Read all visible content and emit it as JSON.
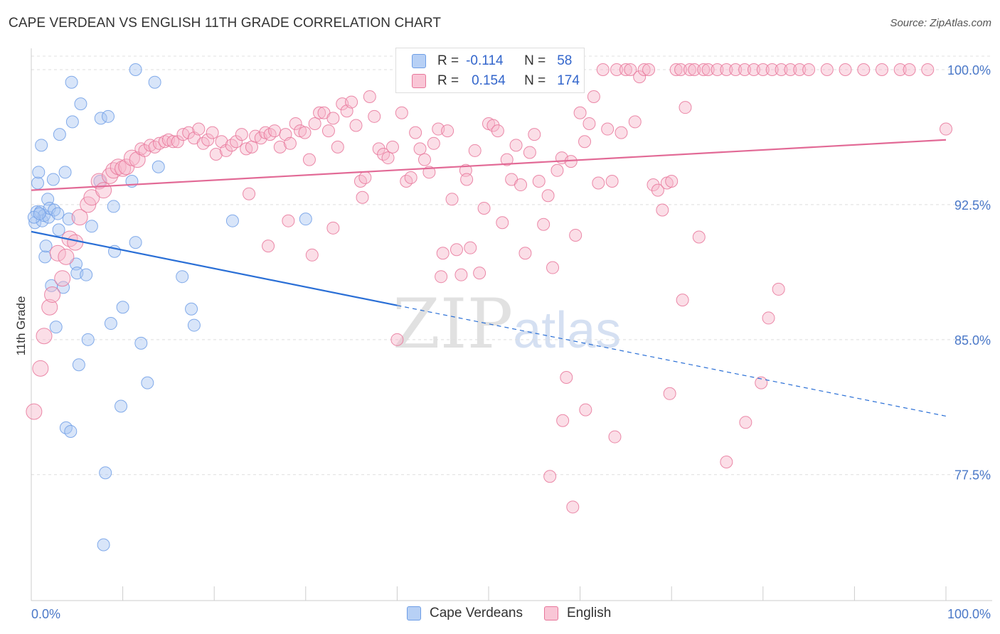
{
  "header": {
    "title": "CAPE VERDEAN VS ENGLISH 11TH GRADE CORRELATION CHART",
    "source": "Source: ZipAtlas.com"
  },
  "legend": {
    "rows": [
      {
        "r_label": "R =",
        "r_value": "-0.114",
        "n_label": "N =",
        "n_value": "58",
        "color": "#a9c6f2"
      },
      {
        "r_label": "R =",
        "r_value": "0.154",
        "n_label": "N =",
        "n_value": "174",
        "color": "#f6b6ca"
      }
    ]
  },
  "bottom_legend": {
    "items": [
      {
        "label": "Cape Verdeans",
        "color": "#a9c6f2"
      },
      {
        "label": "English",
        "color": "#f6b6ca"
      }
    ]
  },
  "watermark": {
    "zip": "ZIP",
    "atlas": "atlas"
  },
  "chart_data": {
    "type": "scatter",
    "title": "CAPE VERDEAN VS ENGLISH 11TH GRADE CORRELATION CHART",
    "xlabel": "",
    "ylabel": "11th Grade",
    "xlim": [
      0,
      100
    ],
    "ylim": [
      70.5,
      101.5
    ],
    "x_tick_labels": [
      "0.0%",
      "100.0%"
    ],
    "y_ticks": [
      77.5,
      85.0,
      92.5,
      100.0
    ],
    "y_tick_labels": [
      "77.5%",
      "85.0%",
      "92.5%",
      "100.0%"
    ],
    "series": [
      {
        "name": "Cape Verdeans",
        "color": "#6e9ee6",
        "fill": "#a9c6f2",
        "trend": {
          "x0": 0,
          "y0": 91.0,
          "x1": 40,
          "y1": 86.9,
          "dash_x1": 100,
          "dash_y1": 80.75
        },
        "points": [
          [
            0.4,
            91.5
          ],
          [
            0.6,
            92.1
          ],
          [
            0.7,
            93.7
          ],
          [
            0.8,
            94.3
          ],
          [
            1.0,
            92.1
          ],
          [
            1.1,
            95.8
          ],
          [
            1.2,
            91.6
          ],
          [
            1.4,
            91.9
          ],
          [
            1.5,
            89.6
          ],
          [
            1.6,
            90.2
          ],
          [
            1.8,
            92.8
          ],
          [
            1.9,
            91.8
          ],
          [
            2.0,
            92.3
          ],
          [
            2.2,
            88.0
          ],
          [
            2.4,
            93.9
          ],
          [
            2.5,
            92.2
          ],
          [
            2.7,
            85.7
          ],
          [
            2.9,
            92.0
          ],
          [
            3.0,
            91.1
          ],
          [
            3.1,
            96.4
          ],
          [
            3.5,
            87.9
          ],
          [
            3.7,
            94.3
          ],
          [
            3.8,
            80.1
          ],
          [
            4.1,
            91.7
          ],
          [
            4.3,
            79.9
          ],
          [
            4.4,
            99.3
          ],
          [
            4.5,
            97.1
          ],
          [
            4.9,
            89.2
          ],
          [
            5.0,
            88.7
          ],
          [
            5.2,
            83.6
          ],
          [
            5.4,
            98.1
          ],
          [
            6.0,
            88.6
          ],
          [
            6.2,
            85.0
          ],
          [
            6.6,
            91.3
          ],
          [
            7.5,
            93.8
          ],
          [
            7.6,
            97.3
          ],
          [
            7.9,
            73.6
          ],
          [
            8.1,
            77.6
          ],
          [
            8.4,
            97.4
          ],
          [
            8.7,
            85.9
          ],
          [
            9.0,
            92.4
          ],
          [
            9.1,
            89.9
          ],
          [
            9.8,
            81.3
          ],
          [
            10.0,
            86.8
          ],
          [
            11.0,
            93.8
          ],
          [
            11.4,
            90.4
          ],
          [
            11.4,
            100.0
          ],
          [
            12.0,
            84.8
          ],
          [
            12.7,
            82.6
          ],
          [
            13.5,
            99.3
          ],
          [
            13.9,
            94.6
          ],
          [
            16.5,
            88.5
          ],
          [
            17.5,
            86.7
          ],
          [
            17.8,
            85.8
          ],
          [
            22.0,
            91.6
          ],
          [
            30.0,
            91.7
          ],
          [
            0.3,
            91.8
          ],
          [
            0.9,
            92.0
          ]
        ]
      },
      {
        "name": "English",
        "color": "#e7769a",
        "fill": "#f6b6ca",
        "trend": {
          "x0": 0,
          "y0": 93.3,
          "x1": 100,
          "y1": 96.1
        },
        "points": [
          [
            0.3,
            81.0
          ],
          [
            1.0,
            83.4
          ],
          [
            1.4,
            85.2
          ],
          [
            2.0,
            86.8
          ],
          [
            2.3,
            87.5
          ],
          [
            2.9,
            89.8
          ],
          [
            3.4,
            88.4
          ],
          [
            3.8,
            89.6
          ],
          [
            4.2,
            90.6
          ],
          [
            4.8,
            90.4
          ],
          [
            5.3,
            91.8
          ],
          [
            6.2,
            92.5
          ],
          [
            6.6,
            92.9
          ],
          [
            7.4,
            93.8
          ],
          [
            7.9,
            93.3
          ],
          [
            8.6,
            94.1
          ],
          [
            9.0,
            94.4
          ],
          [
            9.5,
            94.6
          ],
          [
            10.0,
            94.5
          ],
          [
            10.4,
            94.6
          ],
          [
            11.0,
            95.1
          ],
          [
            11.6,
            95.0
          ],
          [
            12.0,
            95.6
          ],
          [
            12.4,
            95.5
          ],
          [
            13.0,
            95.8
          ],
          [
            13.5,
            95.7
          ],
          [
            14.0,
            95.9
          ],
          [
            14.6,
            96.0
          ],
          [
            15.0,
            96.1
          ],
          [
            15.5,
            96.0
          ],
          [
            16.0,
            96.0
          ],
          [
            16.6,
            96.4
          ],
          [
            17.2,
            96.5
          ],
          [
            17.8,
            96.2
          ],
          [
            18.3,
            96.7
          ],
          [
            18.8,
            95.9
          ],
          [
            19.3,
            96.1
          ],
          [
            19.8,
            96.5
          ],
          [
            20.2,
            95.3
          ],
          [
            20.8,
            96.0
          ],
          [
            21.3,
            95.5
          ],
          [
            21.9,
            95.8
          ],
          [
            22.4,
            96.0
          ],
          [
            23.0,
            96.4
          ],
          [
            23.5,
            95.6
          ],
          [
            24.1,
            95.7
          ],
          [
            24.5,
            96.3
          ],
          [
            25.1,
            96.2
          ],
          [
            25.6,
            96.5
          ],
          [
            26.1,
            96.4
          ],
          [
            26.6,
            96.6
          ],
          [
            27.2,
            95.7
          ],
          [
            27.8,
            96.4
          ],
          [
            28.3,
            95.9
          ],
          [
            28.9,
            97.0
          ],
          [
            29.4,
            96.6
          ],
          [
            29.9,
            96.5
          ],
          [
            30.4,
            95.0
          ],
          [
            31.0,
            97.0
          ],
          [
            31.5,
            97.6
          ],
          [
            32.0,
            97.6
          ],
          [
            32.5,
            96.6
          ],
          [
            33.0,
            97.3
          ],
          [
            33.5,
            95.7
          ],
          [
            34.0,
            98.1
          ],
          [
            34.5,
            97.7
          ],
          [
            35.0,
            98.2
          ],
          [
            35.5,
            96.9
          ],
          [
            36.0,
            93.8
          ],
          [
            36.5,
            94.0
          ],
          [
            37.0,
            98.5
          ],
          [
            37.5,
            97.4
          ],
          [
            38.0,
            95.6
          ],
          [
            38.5,
            95.3
          ],
          [
            39.0,
            95.1
          ],
          [
            39.5,
            95.7
          ],
          [
            40.0,
            85.0
          ],
          [
            40.5,
            97.6
          ],
          [
            41.0,
            93.8
          ],
          [
            41.5,
            94.0
          ],
          [
            42.0,
            96.5
          ],
          [
            42.5,
            95.6
          ],
          [
            43.0,
            95.0
          ],
          [
            43.5,
            94.3
          ],
          [
            44.0,
            95.9
          ],
          [
            44.5,
            96.7
          ],
          [
            45.0,
            89.8
          ],
          [
            45.5,
            96.6
          ],
          [
            46.0,
            92.8
          ],
          [
            46.5,
            90.0
          ],
          [
            47.0,
            88.6
          ],
          [
            47.5,
            94.4
          ],
          [
            48.0,
            90.1
          ],
          [
            48.5,
            95.5
          ],
          [
            49.0,
            88.7
          ],
          [
            49.5,
            92.3
          ],
          [
            50.0,
            97.0
          ],
          [
            50.5,
            96.9
          ],
          [
            51.0,
            96.6
          ],
          [
            51.5,
            91.5
          ],
          [
            52.0,
            95.0
          ],
          [
            52.5,
            93.9
          ],
          [
            53.0,
            95.8
          ],
          [
            53.5,
            93.6
          ],
          [
            54.0,
            89.8
          ],
          [
            54.5,
            95.4
          ],
          [
            55.0,
            96.4
          ],
          [
            55.5,
            93.8
          ],
          [
            56.0,
            91.4
          ],
          [
            56.5,
            93.0
          ],
          [
            57.0,
            89.0
          ],
          [
            57.5,
            94.4
          ],
          [
            58.0,
            95.1
          ],
          [
            58.5,
            82.9
          ],
          [
            59.0,
            94.9
          ],
          [
            59.5,
            90.8
          ],
          [
            60.0,
            97.6
          ],
          [
            60.5,
            96.0
          ],
          [
            61.0,
            97.0
          ],
          [
            61.5,
            98.5
          ],
          [
            62.0,
            93.7
          ],
          [
            62.5,
            100.0
          ],
          [
            63.0,
            96.7
          ],
          [
            63.5,
            93.8
          ],
          [
            64.0,
            100.0
          ],
          [
            64.5,
            96.5
          ],
          [
            65.0,
            100.0
          ],
          [
            65.5,
            100.0
          ],
          [
            66.0,
            97.1
          ],
          [
            66.5,
            99.6
          ],
          [
            67.0,
            100.0
          ],
          [
            67.5,
            100.0
          ],
          [
            68.0,
            93.6
          ],
          [
            68.5,
            93.3
          ],
          [
            69.0,
            92.2
          ],
          [
            69.5,
            93.7
          ],
          [
            70.0,
            93.8
          ],
          [
            70.5,
            100.0
          ],
          [
            71.0,
            100.0
          ],
          [
            71.5,
            97.9
          ],
          [
            72.0,
            100.0
          ],
          [
            72.5,
            100.0
          ],
          [
            73.0,
            90.7
          ],
          [
            73.5,
            100.0
          ],
          [
            74.0,
            100.0
          ],
          [
            75.0,
            100.0
          ],
          [
            76.0,
            100.0
          ],
          [
            77.0,
            100.0
          ],
          [
            78.0,
            100.0
          ],
          [
            79.0,
            100.0
          ],
          [
            80.0,
            100.0
          ],
          [
            81.0,
            100.0
          ],
          [
            82.0,
            100.0
          ],
          [
            83.0,
            100.0
          ],
          [
            84.0,
            100.0
          ],
          [
            85.0,
            100.0
          ],
          [
            87.0,
            100.0
          ],
          [
            89.0,
            100.0
          ],
          [
            91.0,
            100.0
          ],
          [
            93.0,
            100.0
          ],
          [
            95.0,
            100.0
          ],
          [
            96.0,
            100.0
          ],
          [
            98.0,
            100.0
          ],
          [
            100.0,
            96.7
          ],
          [
            59.2,
            75.7
          ],
          [
            58.1,
            80.5
          ],
          [
            56.7,
            77.4
          ],
          [
            76.0,
            78.2
          ],
          [
            78.1,
            80.4
          ],
          [
            79.8,
            82.6
          ],
          [
            80.6,
            86.2
          ],
          [
            81.7,
            87.8
          ],
          [
            69.8,
            82.0
          ],
          [
            71.2,
            87.2
          ],
          [
            60.6,
            81.1
          ],
          [
            63.8,
            79.6
          ],
          [
            47.6,
            93.9
          ],
          [
            44.8,
            88.5
          ],
          [
            36.2,
            92.9
          ],
          [
            33.0,
            91.2
          ],
          [
            30.7,
            89.7
          ],
          [
            28.1,
            91.6
          ],
          [
            25.9,
            90.2
          ],
          [
            23.8,
            93.1
          ]
        ]
      }
    ]
  }
}
